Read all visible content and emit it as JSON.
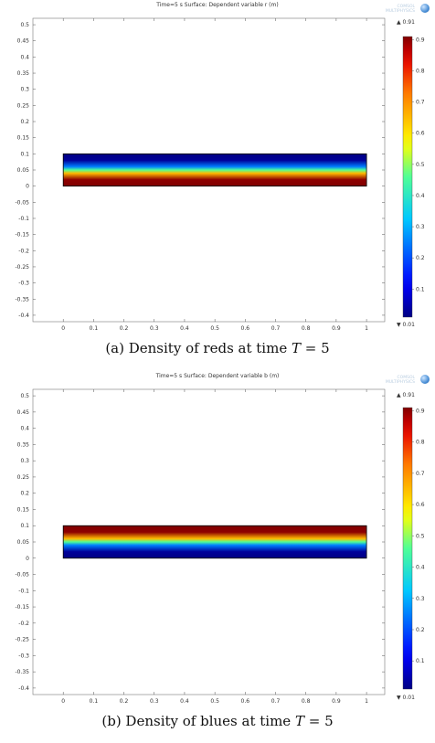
{
  "panels": [
    {
      "id": "a",
      "plot_title": "Time=5 s   Surface: Dependent variable r (m)",
      "caption_prefix": "(a) Density of reds at time ",
      "caption_var": "T",
      "caption_suffix": " = 5",
      "logo_text_1": "COMSOL",
      "logo_text_2": "MULTIPHYSICS",
      "colorbar_max_label": "▲ 0.91",
      "colorbar_min_label": "▼ 0.01"
    },
    {
      "id": "b",
      "plot_title": "Time=5 s   Surface: Dependent variable b (m)",
      "caption_prefix": "(b) Density of blues at time ",
      "caption_var": "T",
      "caption_suffix": " = 5",
      "logo_text_1": "COMSOL",
      "logo_text_2": "MULTIPHYSICS",
      "colorbar_max_label": "▲ 0.91",
      "colorbar_min_label": "▼ 0.01"
    }
  ],
  "chart_data": [
    {
      "type": "heatmap",
      "title": "Time=5 s   Surface: Dependent variable r (m)",
      "x_ticks": [
        "0",
        "0.1",
        "0.2",
        "0.3",
        "0.4",
        "0.5",
        "0.6",
        "0.7",
        "0.8",
        "0.9",
        "1"
      ],
      "y_ticks": [
        "0.5",
        "0.45",
        "0.4",
        "0.35",
        "0.3",
        "0.25",
        "0.2",
        "0.15",
        "0.1",
        "0.05",
        "0",
        "-0.05",
        "-0.1",
        "-0.15",
        "-0.2",
        "-0.25",
        "-0.3",
        "-0.35",
        "-0.4"
      ],
      "xlim": [
        -0.1,
        1.06
      ],
      "ylim": [
        -0.42,
        0.52
      ],
      "domain": {
        "x": [
          0,
          1
        ],
        "y": [
          0,
          0.1
        ]
      },
      "profile_y": [
        0,
        0.02,
        0.04,
        0.05,
        0.06,
        0.08,
        0.1
      ],
      "profile_value": [
        0.91,
        0.9,
        0.65,
        0.46,
        0.25,
        0.03,
        0.01
      ],
      "colorbar": {
        "min": 0.01,
        "max": 0.91,
        "ticks": [
          "0.9",
          "0.8",
          "0.7",
          "0.6",
          "0.5",
          "0.4",
          "0.3",
          "0.2",
          "0.1"
        ],
        "colormap": "rainbow"
      },
      "grid": false
    },
    {
      "type": "heatmap",
      "title": "Time=5 s   Surface: Dependent variable b (m)",
      "x_ticks": [
        "0",
        "0.1",
        "0.2",
        "0.3",
        "0.4",
        "0.5",
        "0.6",
        "0.7",
        "0.8",
        "0.9",
        "1"
      ],
      "y_ticks": [
        "0.5",
        "0.45",
        "0.4",
        "0.35",
        "0.3",
        "0.25",
        "0.2",
        "0.15",
        "0.1",
        "0.05",
        "0",
        "-0.05",
        "-0.1",
        "-0.15",
        "-0.2",
        "-0.25",
        "-0.3",
        "-0.35",
        "-0.4"
      ],
      "xlim": [
        -0.1,
        1.06
      ],
      "ylim": [
        -0.42,
        0.52
      ],
      "domain": {
        "x": [
          0,
          1
        ],
        "y": [
          0,
          0.1
        ]
      },
      "profile_y": [
        0,
        0.02,
        0.04,
        0.05,
        0.06,
        0.08,
        0.1
      ],
      "profile_value": [
        0.01,
        0.03,
        0.25,
        0.46,
        0.65,
        0.9,
        0.91
      ],
      "colorbar": {
        "min": 0.01,
        "max": 0.91,
        "ticks": [
          "0.9",
          "0.8",
          "0.7",
          "0.6",
          "0.5",
          "0.4",
          "0.3",
          "0.2",
          "0.1"
        ],
        "colormap": "rainbow"
      },
      "grid": false
    }
  ]
}
